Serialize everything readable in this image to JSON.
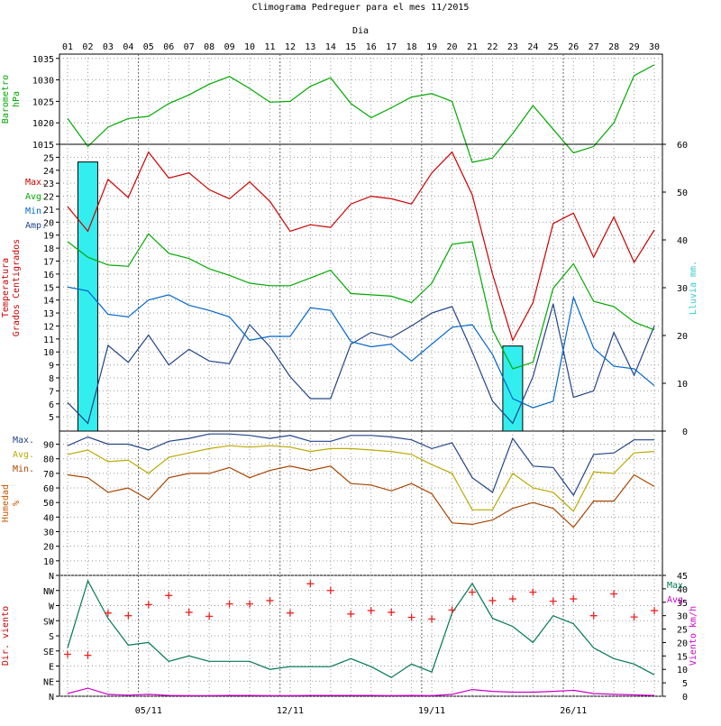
{
  "chart_data": {
    "title": "Climograma Pedreguer para el mes 11/2015",
    "top_axis_label": "Dia",
    "days": [
      "01",
      "02",
      "03",
      "04",
      "05",
      "06",
      "07",
      "08",
      "09",
      "10",
      "11",
      "12",
      "13",
      "14",
      "15",
      "16",
      "17",
      "18",
      "19",
      "20",
      "21",
      "22",
      "23",
      "24",
      "25",
      "26",
      "27",
      "28",
      "29",
      "30"
    ],
    "date_labels": [
      "05/11",
      "12/11",
      "19/11",
      "26/11"
    ],
    "panels": [
      {
        "name": "barometro",
        "type": "line",
        "ylabel": [
          "Barometro",
          "hPa"
        ],
        "ylabel_color": "#00aa00",
        "yticks": [
          1015,
          1020,
          1025,
          1030,
          1035
        ],
        "ylim": [
          1015,
          1036
        ],
        "series": [
          {
            "color": "#00aa00",
            "values": [
              1021,
              1014.5,
              1019,
              1021,
              1021.5,
              1024.5,
              1026.5,
              1029,
              1030.8,
              1028,
              1024.8,
              1025,
              1028.5,
              1030.5,
              1024.5,
              1021.2,
              1023.5,
              1026,
              1026.8,
              1025,
              1010.8,
              1011.8,
              1017.5,
              1024,
              1018.5,
              1013,
              1014.5,
              1020,
              1031,
              1033.5
            ]
          }
        ]
      },
      {
        "name": "temperatura",
        "type": "line+bar",
        "ylabel": [
          "Temperatura",
          "Grados Centigrados"
        ],
        "ylabel_color": "#cc0000",
        "yticks": [
          5,
          6,
          7,
          8,
          9,
          10,
          11,
          12,
          13,
          14,
          15,
          16,
          17,
          18,
          19,
          20,
          21,
          22,
          23,
          24,
          25
        ],
        "ylim": [
          3.9,
          26
        ],
        "legend": [
          {
            "label": "Max.",
            "color": "#cc0000"
          },
          {
            "label": "Avg.",
            "color": "#00aa00"
          },
          {
            "label": "Min.",
            "color": "#0066cc"
          },
          {
            "label": "Amp.",
            "color": "#224488"
          }
        ],
        "series": [
          {
            "color": "#cc0000",
            "values": [
              21.2,
              19.3,
              23.3,
              21.9,
              25.4,
              23.4,
              23.8,
              22.5,
              21.8,
              23.1,
              21.6,
              19.3,
              19.8,
              19.6,
              21.4,
              22.0,
              21.8,
              21.4,
              23.8,
              25.4,
              22.1,
              16.0,
              10.9,
              13.8,
              19.9,
              20.7,
              17.3,
              20.4,
              16.9,
              19.4
            ]
          },
          {
            "color": "#00aa00",
            "values": [
              18.5,
              17.3,
              16.7,
              16.6,
              19.1,
              17.6,
              17.2,
              16.4,
              15.9,
              15.3,
              15.1,
              15.1,
              15.7,
              16.3,
              14.5,
              14.4,
              14.3,
              13.8,
              15.3,
              18.3,
              18.5,
              11.7,
              8.7,
              9.2,
              14.9,
              16.8,
              13.9,
              13.5,
              12.3,
              11.7
            ]
          },
          {
            "color": "#0066cc",
            "values": [
              15.0,
              14.7,
              12.9,
              12.7,
              14.0,
              14.4,
              13.6,
              13.2,
              12.7,
              10.9,
              11.2,
              11.2,
              13.4,
              13.2,
              10.8,
              10.4,
              10.6,
              9.3,
              10.6,
              11.9,
              12.1,
              9.8,
              6.4,
              5.7,
              6.2,
              14.2,
              10.3,
              8.9,
              8.7,
              7.4
            ]
          },
          {
            "color": "#224488",
            "values": [
              6.1,
              4.5,
              10.5,
              9.2,
              11.3,
              9.0,
              10.2,
              9.3,
              9.1,
              12.1,
              10.4,
              8.1,
              6.4,
              6.4,
              10.6,
              11.5,
              11.1,
              12.0,
              13.0,
              13.5,
              10.0,
              6.2,
              4.5,
              8.1,
              13.7,
              6.5,
              7.0,
              11.5,
              8.2,
              12.0
            ]
          }
        ],
        "rain": {
          "ylabel": "Lluvia mm.",
          "ylabel_color": "#33cccc",
          "yticks": [
            0,
            10,
            20,
            30,
            40,
            50,
            60
          ],
          "ylim": [
            0,
            60
          ],
          "color": "#33eeee",
          "values": [
            0,
            56.3,
            0,
            0,
            0,
            0,
            0,
            0,
            0,
            0,
            0,
            0,
            0,
            0,
            0,
            0,
            0,
            0,
            0,
            0,
            0,
            0,
            17.8,
            0,
            0,
            0,
            0,
            0,
            0,
            0
          ]
        }
      },
      {
        "name": "humedad",
        "type": "line",
        "ylabel": [
          "Humedad",
          "%"
        ],
        "ylabel_color": "#cc5500",
        "yticks": [
          10,
          20,
          30,
          40,
          50,
          60,
          70,
          80,
          90
        ],
        "ylim": [
          0,
          99
        ],
        "legend": [
          {
            "label": "Max.",
            "color": "#224488"
          },
          {
            "label": "Avg.",
            "color": "#bbaa00"
          },
          {
            "label": "Min.",
            "color": "#aa4400"
          }
        ],
        "series": [
          {
            "color": "#224488",
            "values": [
              89,
              95,
              90,
              90,
              86,
              92,
              94,
              97,
              97,
              96,
              94,
              96,
              92,
              92,
              96,
              96,
              95,
              93,
              87,
              91,
              67,
              57,
              94,
              75,
              74,
              55,
              83,
              84,
              93,
              93
            ]
          },
          {
            "color": "#bbaa00",
            "values": [
              83,
              86,
              78,
              79,
              70,
              81,
              84,
              87,
              89,
              88,
              89,
              88,
              85,
              87,
              87,
              86,
              85,
              83,
              76,
              70,
              45,
              45,
              70,
              60,
              57,
              44,
              71,
              70,
              84,
              85
            ]
          },
          {
            "color": "#aa4400",
            "values": [
              69,
              67,
              57,
              60,
              52,
              67,
              70,
              70,
              74,
              67,
              72,
              75,
              72,
              75,
              63,
              62,
              58,
              63,
              56,
              36,
              35,
              38,
              46,
              50,
              46,
              33,
              51,
              51,
              69,
              61
            ]
          }
        ]
      },
      {
        "name": "viento",
        "type": "line+scatter",
        "ylabel": [
          "Dir. viento"
        ],
        "ylabel_color": "#cc0000",
        "direction_ticks": [
          "N",
          "NE",
          "E",
          "SE",
          "S",
          "SW",
          "W",
          "NW",
          "N"
        ],
        "direction_values": [
          125,
          122,
          248,
          240,
          273,
          300,
          250,
          238,
          275,
          275,
          285,
          248,
          335,
          315,
          245,
          255,
          250,
          235,
          230,
          257,
          310,
          285,
          290,
          310,
          283,
          290,
          240,
          305,
          236,
          255
        ],
        "direction_color": "#ee2222",
        "speed_axis": {
          "ylabel": "Viento km/h",
          "ylabel_color": "#cc00cc",
          "yticks": [
            0,
            5,
            10,
            15,
            20,
            25,
            30,
            35,
            40,
            45
          ],
          "ylim": [
            0,
            45
          ]
        },
        "legend": [
          {
            "label": "Max.",
            "color": "#007755"
          },
          {
            "label": "Avg.",
            "color": "#cc00cc"
          }
        ],
        "series": [
          {
            "color": "#007755",
            "values": [
              18,
              43,
              29,
              19,
              20,
              13,
              15,
              13,
              13,
              13,
              10,
              11,
              11,
              11,
              14,
              11,
              7,
              12,
              9,
              31,
              42,
              29,
              26,
              20,
              30,
              27,
              18,
              14,
              12,
              8
            ]
          },
          {
            "color": "#cc00cc",
            "values": [
              1,
              3,
              0.7,
              0.4,
              0.7,
              0.3,
              0.2,
              0.2,
              0.3,
              0.3,
              0.2,
              0.2,
              0.3,
              0.3,
              0.3,
              0.3,
              0.2,
              0.3,
              0.2,
              0.7,
              2.5,
              1.8,
              1.5,
              1.5,
              1.8,
              2.2,
              1,
              0.7,
              0.5,
              0.3
            ]
          }
        ]
      }
    ]
  }
}
